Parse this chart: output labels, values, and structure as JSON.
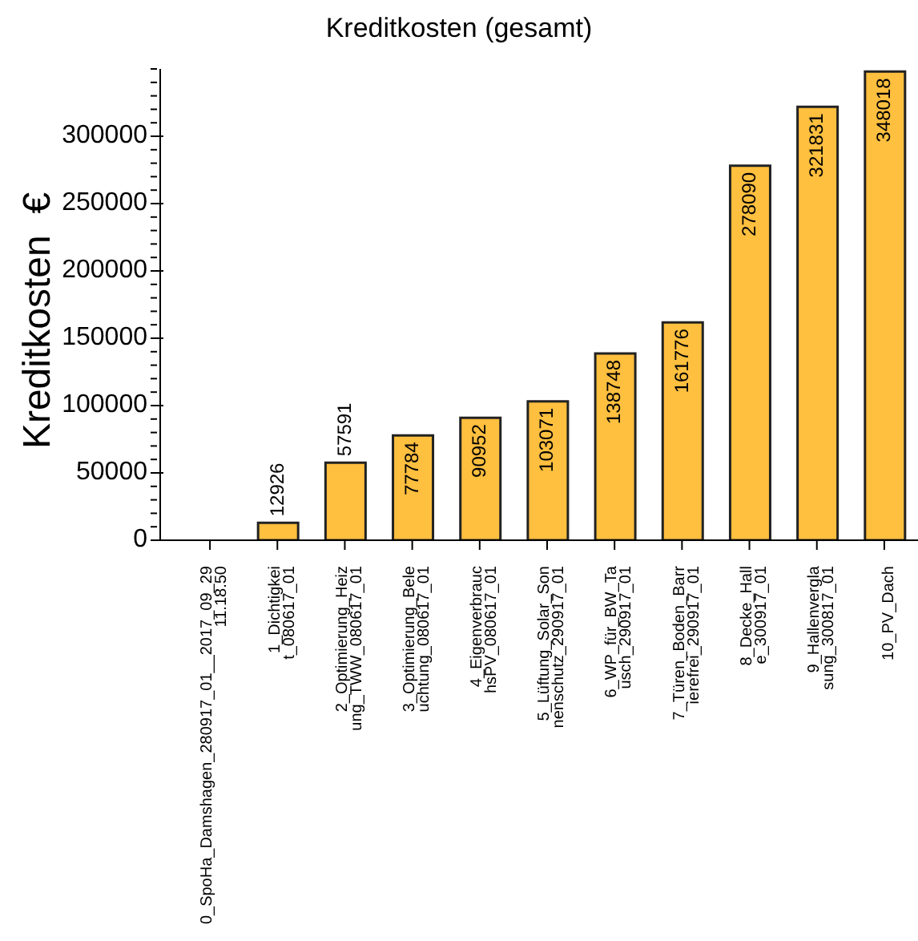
{
  "chart_data": {
    "type": "bar",
    "title": "Kreditkosten (gesamt)",
    "ylabel": "Kreditkosten  €",
    "categories": [
      "0_SpoHa_Damshagen_280917_01__2017_09_29\n11.18.50",
      "1_Dichtigkei\nt_080617_01",
      "2_Optimierung_Heiz\nung_TWW_080617_01",
      "3_Optimierung_Bele\nuchtung_080617_01",
      "4_Eigenverbrauc\nhsPV_080617_01",
      "5_Lüftung_Solar_Son\nnenschutz_290917_01",
      "6_WP_für_BW_Ta\nusch_290917_01",
      "7_Türen_Boden_Barr\nierefrei_290917_01",
      "8_Decke_Hall\ne_300917_01",
      "9_Hallenvergla\nsung_300817_01",
      "10_PV_Dach"
    ],
    "values": [
      0,
      12926,
      57591,
      77784,
      90952,
      103071,
      138748,
      161776,
      278090,
      321831,
      348018
    ],
    "value_labels": [
      null,
      "12926",
      "57591",
      "77784",
      "90952",
      "103071",
      "138748",
      "161776",
      "278090",
      "321831",
      "348018"
    ],
    "color": "#ffbf3f",
    "ylim": [
      0,
      350000
    ],
    "yticks": [
      0,
      {
        "value": 10000,
        "label": null
      },
      {
        "value": 20000,
        "label": null
      },
      {
        "value": 30000,
        "label": null
      },
      {
        "value": 40000,
        "label": null
      },
      50000,
      {
        "value": 60000,
        "label": null
      },
      {
        "value": 70000,
        "label": null
      },
      {
        "value": 80000,
        "label": null
      },
      {
        "value": 90000,
        "label": null
      },
      100000,
      {
        "value": 110000,
        "label": null
      },
      {
        "value": 120000,
        "label": null
      },
      {
        "value": 130000,
        "label": null
      },
      {
        "value": 140000,
        "label": null
      },
      150000,
      {
        "value": 160000,
        "label": null
      },
      {
        "value": 170000,
        "label": null
      },
      {
        "value": 180000,
        "label": null
      },
      {
        "value": 190000,
        "label": null
      },
      200000,
      {
        "value": 210000,
        "label": null
      },
      {
        "value": 220000,
        "label": null
      },
      {
        "value": 230000,
        "label": null
      },
      {
        "value": 240000,
        "label": null
      },
      250000,
      {
        "value": 260000,
        "label": null
      },
      {
        "value": 270000,
        "label": null
      },
      {
        "value": 280000,
        "label": null
      },
      {
        "value": 290000,
        "label": null
      },
      300000,
      {
        "value": 310000,
        "label": null
      },
      {
        "value": 320000,
        "label": null
      },
      {
        "value": 330000,
        "label": null
      },
      {
        "value": 340000,
        "label": null
      },
      {
        "value": 350000,
        "label": null
      }
    ]
  }
}
